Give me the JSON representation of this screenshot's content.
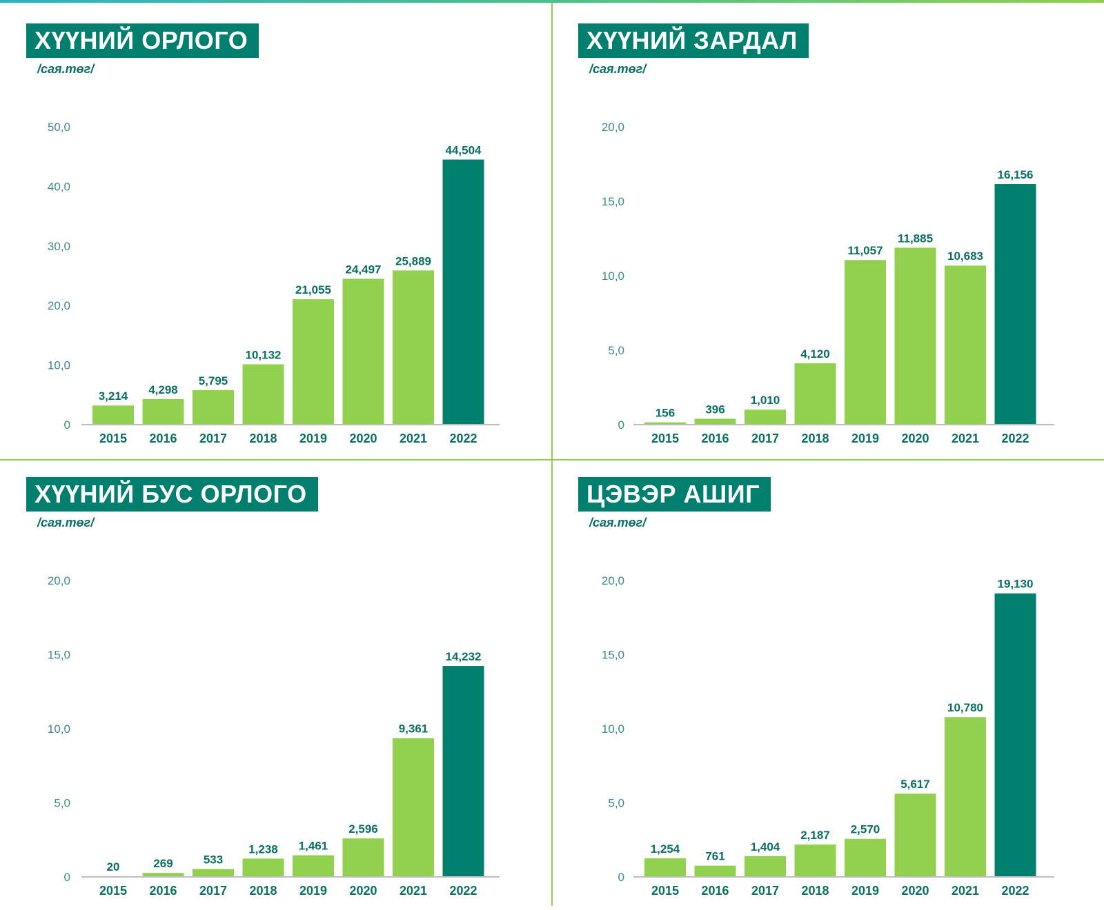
{
  "chart_data": [
    {
      "type": "bar",
      "title": "ХҮҮНИЙ ОРЛОГО",
      "unit": "/сая.төг/",
      "categories": [
        "2015",
        "2016",
        "2017",
        "2018",
        "2019",
        "2020",
        "2021",
        "2022"
      ],
      "values": [
        3.214,
        4.298,
        5.795,
        10.132,
        21.055,
        24.497,
        25.889,
        44.504
      ],
      "value_labels": [
        "3,214",
        "4,298",
        "5,795",
        "10,132",
        "21,055",
        "24,497",
        "25,889",
        "44,504"
      ],
      "ylim": [
        0,
        50
      ],
      "yticks": [
        0,
        10,
        20,
        30,
        40,
        50
      ],
      "ytick_labels": [
        "0",
        "10,0",
        "20,0",
        "30,0",
        "40,0",
        "50,0"
      ],
      "highlight_index": 7,
      "colors": {
        "bar": "#92d050",
        "highlight": "#007f6e"
      }
    },
    {
      "type": "bar",
      "title": "ХҮҮНИЙ ЗАРДАЛ",
      "unit": "/сая.төг/",
      "categories": [
        "2015",
        "2016",
        "2017",
        "2018",
        "2019",
        "2020",
        "2021",
        "2022"
      ],
      "values": [
        0.156,
        0.396,
        1.01,
        4.12,
        11.057,
        11.885,
        10.683,
        16.156
      ],
      "value_labels": [
        "156",
        "396",
        "1,010",
        "4,120",
        "11,057",
        "11,885",
        "10,683",
        "16,156"
      ],
      "ylim": [
        0,
        20
      ],
      "yticks": [
        0,
        5,
        10,
        15,
        20
      ],
      "ytick_labels": [
        "0",
        "5,0",
        "10,0",
        "15,0",
        "20,0"
      ],
      "highlight_index": 7,
      "colors": {
        "bar": "#92d050",
        "highlight": "#007f6e"
      }
    },
    {
      "type": "bar",
      "title": "ХҮҮНИЙ БУС ОРЛОГО",
      "unit": "/сая.төг/",
      "categories": [
        "2015",
        "2016",
        "2017",
        "2018",
        "2019",
        "2020",
        "2021",
        "2022"
      ],
      "values": [
        0.02,
        0.269,
        0.533,
        1.238,
        1.461,
        2.596,
        9.361,
        14.232
      ],
      "value_labels": [
        "20",
        "269",
        "533",
        "1,238",
        "1,461",
        "2,596",
        "9,361",
        "14,232"
      ],
      "ylim": [
        0,
        20
      ],
      "yticks": [
        0,
        5,
        10,
        15,
        20
      ],
      "ytick_labels": [
        "0",
        "5,0",
        "10,0",
        "15,0",
        "20,0"
      ],
      "highlight_index": 7,
      "colors": {
        "bar": "#92d050",
        "highlight": "#007f6e"
      }
    },
    {
      "type": "bar",
      "title": "ЦЭВЭР АШИГ",
      "unit": "/сая.төг/",
      "categories": [
        "2015",
        "2016",
        "2017",
        "2018",
        "2019",
        "2020",
        "2021",
        "2022"
      ],
      "values": [
        1.254,
        0.761,
        1.404,
        2.187,
        2.57,
        5.617,
        10.78,
        19.13
      ],
      "value_labels": [
        "1,254",
        "761",
        "1,404",
        "2,187",
        "2,570",
        "5,617",
        "10,780",
        "19,130"
      ],
      "ylim": [
        0,
        20
      ],
      "yticks": [
        0,
        5,
        10,
        15,
        20
      ],
      "ytick_labels": [
        "0",
        "5,0",
        "10,0",
        "15,0",
        "20,0"
      ],
      "highlight_index": 7,
      "colors": {
        "bar": "#92d050",
        "highlight": "#007f6e"
      }
    }
  ]
}
